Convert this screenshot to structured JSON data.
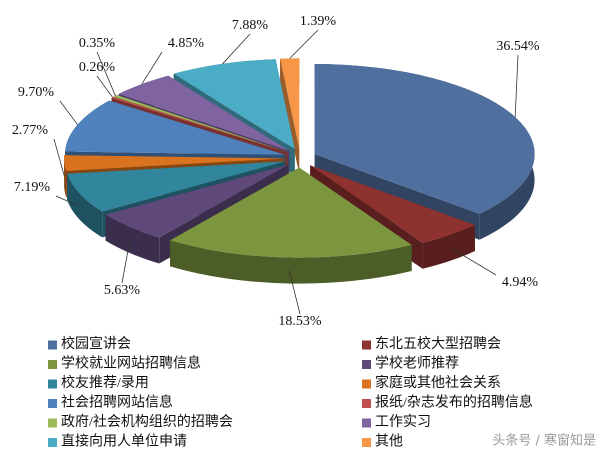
{
  "chart_data": {
    "type": "pie",
    "categories": [
      "校园宣讲会",
      "东北五校大型招聘会",
      "学校就业网站招聘信息",
      "学校老师推荐",
      "校友推荐/录用",
      "家庭或其他社会关系",
      "社会招聘网站信息",
      "报纸/杂志发布的招聘信息",
      "政府/社会机构组织的招聘会",
      "工作实习",
      "直接向用人单位申请",
      "其他"
    ],
    "values": [
      36.54,
      4.94,
      18.53,
      5.63,
      7.19,
      2.77,
      9.7,
      0.26,
      0.35,
      4.85,
      7.88,
      1.39
    ],
    "value_labels": [
      "36.54%",
      "4.94%",
      "18.53%",
      "5.63%",
      "7.19%",
      "2.77%",
      "9.70%",
      "0.26%",
      "0.35%",
      "4.85%",
      "7.88%",
      "1.39%"
    ],
    "colors": [
      "#4f6f9e",
      "#8e3230",
      "#7b963f",
      "#5f497a",
      "#31859c",
      "#d9731f",
      "#4f81bd",
      "#c0504d",
      "#9bbb59",
      "#8064a2",
      "#4bacc6",
      "#f79646"
    ],
    "watermark": "头条号 / 寒窗知是"
  }
}
